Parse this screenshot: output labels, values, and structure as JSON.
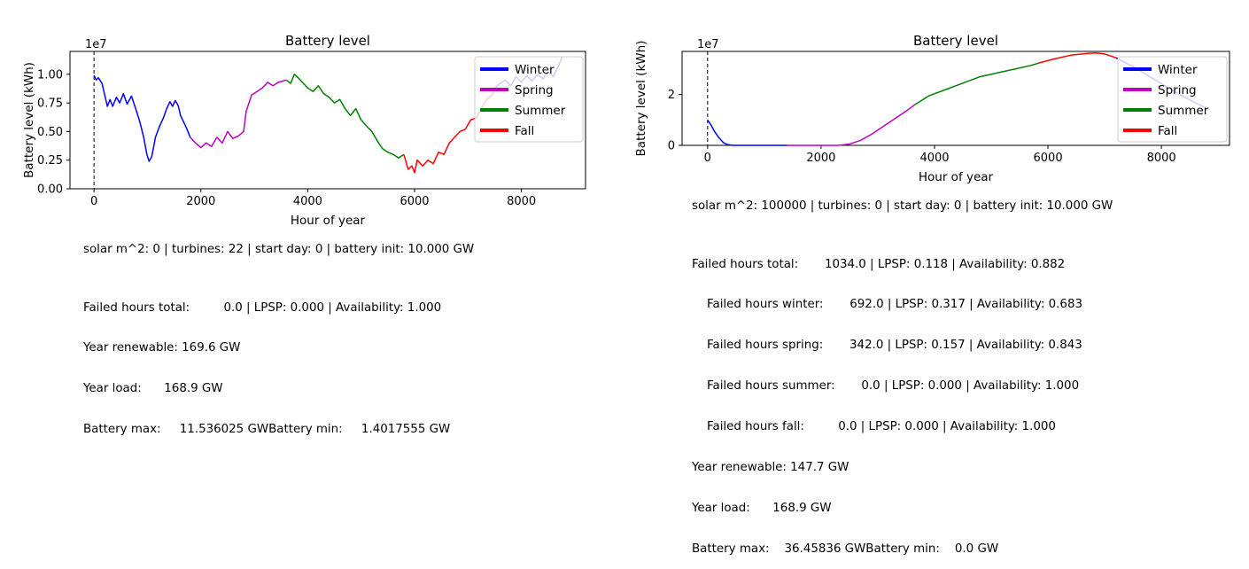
{
  "chart_data": [
    {
      "type": "line",
      "title": "Battery level",
      "xlabel": "Hour of year",
      "ylabel": "Battery level (kWh)",
      "offset_label": "1e7",
      "xlim": [
        -450,
        9200
      ],
      "ylim": [
        0,
        1.2
      ],
      "x_ticks": [
        0,
        2000,
        4000,
        6000,
        8000
      ],
      "y_ticks": [
        0.0,
        0.25,
        0.5,
        0.75,
        1.0
      ],
      "y_tick_labels": [
        "0.00",
        "0.25",
        "0.50",
        "0.75",
        "1.00"
      ],
      "x_tick_labels": [
        "0",
        "2000",
        "4000",
        "6000",
        "8000"
      ],
      "legend": [
        "Winter",
        "Spring",
        "Summer",
        "Fall"
      ],
      "legend_placement": "top-right",
      "vline_x": 0,
      "series": [
        {
          "name": "Winter",
          "color": "#0000ff",
          "x": [
            0,
            40,
            80,
            150,
            250,
            300,
            350,
            420,
            480,
            550,
            620,
            700,
            780,
            860,
            930,
            990,
            1030,
            1080,
            1150,
            1230,
            1300,
            1360,
            1420,
            1470,
            1520,
            1560,
            1580,
            1620,
            1680,
            1740,
            1800
          ],
          "y": [
            0.99,
            0.95,
            0.97,
            0.92,
            0.72,
            0.78,
            0.72,
            0.8,
            0.75,
            0.83,
            0.74,
            0.81,
            0.7,
            0.58,
            0.45,
            0.3,
            0.24,
            0.28,
            0.45,
            0.55,
            0.62,
            0.7,
            0.76,
            0.72,
            0.77,
            0.74,
            0.72,
            0.64,
            0.58,
            0.52,
            0.45
          ]
        },
        {
          "name": "Spring",
          "color": "#c000c0",
          "x": [
            1800,
            1900,
            2000,
            2100,
            2200,
            2300,
            2400,
            2500,
            2600,
            2700,
            2800,
            2850,
            2950,
            3050,
            3150,
            3250,
            3350,
            3450,
            3600
          ],
          "y": [
            0.45,
            0.4,
            0.36,
            0.4,
            0.37,
            0.45,
            0.4,
            0.5,
            0.44,
            0.46,
            0.5,
            0.68,
            0.82,
            0.85,
            0.88,
            0.93,
            0.9,
            0.93,
            0.95
          ]
        },
        {
          "name": "Summer",
          "color": "#008000",
          "x": [
            3600,
            3680,
            3750,
            3800,
            3900,
            4000,
            4100,
            4200,
            4300,
            4400,
            4500,
            4600,
            4700,
            4800,
            4900,
            5000,
            5100,
            5200,
            5300,
            5400,
            5500,
            5600,
            5700,
            5800
          ],
          "y": [
            0.95,
            0.92,
            1.0,
            0.98,
            0.93,
            0.88,
            0.85,
            0.9,
            0.83,
            0.8,
            0.75,
            0.78,
            0.7,
            0.64,
            0.7,
            0.6,
            0.55,
            0.5,
            0.42,
            0.35,
            0.32,
            0.3,
            0.27,
            0.3
          ]
        },
        {
          "name": "Fall",
          "color": "#ff0000",
          "x": [
            5800,
            5880,
            5950,
            6000,
            6050,
            6150,
            6250,
            6350,
            6450,
            6550,
            6650,
            6750,
            6850,
            6950,
            7050,
            7150,
            7250,
            7350,
            7450,
            7500
          ],
          "y": [
            0.3,
            0.17,
            0.2,
            0.14,
            0.25,
            0.2,
            0.25,
            0.22,
            0.32,
            0.3,
            0.4,
            0.45,
            0.5,
            0.52,
            0.6,
            0.62,
            0.7,
            0.78,
            0.82,
            0.88
          ]
        },
        {
          "name": "",
          "color": "#0000ff",
          "x": [
            7500,
            7600,
            7700,
            7800,
            7900,
            8000,
            8100,
            8200,
            8300,
            8400,
            8500,
            8600,
            8700,
            8760
          ],
          "y": [
            0.88,
            0.92,
            0.95,
            0.9,
            0.98,
            0.93,
            0.99,
            0.94,
            1.0,
            0.96,
            1.02,
            0.98,
            1.08,
            1.15
          ]
        }
      ]
    },
    {
      "type": "line",
      "title": "Battery level",
      "xlabel": "Hour of year",
      "ylabel": "Battery level (kWh)",
      "offset_label": "1e7",
      "xlim": [
        -450,
        9200
      ],
      "ylim": [
        0,
        3.7
      ],
      "x_ticks": [
        0,
        2000,
        4000,
        6000,
        8000
      ],
      "y_ticks": [
        0,
        2
      ],
      "y_tick_labels": [
        "0",
        "2"
      ],
      "x_tick_labels": [
        "0",
        "2000",
        "4000",
        "6000",
        "8000"
      ],
      "legend": [
        "Winter",
        "Spring",
        "Summer",
        "Fall"
      ],
      "legend_placement": "top-right",
      "vline_x": 0,
      "series": [
        {
          "name": "Winter",
          "color": "#0000ff",
          "x": [
            0,
            60,
            120,
            200,
            280,
            350,
            450,
            600,
            800,
            1000,
            1200,
            1400
          ],
          "y": [
            1.0,
            0.8,
            0.55,
            0.3,
            0.1,
            0.03,
            0.0,
            0.0,
            0.0,
            0.0,
            0.0,
            0.0
          ]
        },
        {
          "name": "Spring",
          "color": "#c000c0",
          "x": [
            1400,
            1700,
            2000,
            2300,
            2500,
            2700,
            2900,
            3100,
            3300,
            3500,
            3650
          ],
          "y": [
            0.0,
            0.0,
            0.0,
            0.0,
            0.05,
            0.2,
            0.45,
            0.75,
            1.05,
            1.35,
            1.6
          ]
        },
        {
          "name": "Summer",
          "color": "#008000",
          "x": [
            3650,
            3900,
            4200,
            4500,
            4800,
            5100,
            5400,
            5700,
            5850
          ],
          "y": [
            1.6,
            1.95,
            2.2,
            2.45,
            2.7,
            2.85,
            3.0,
            3.15,
            3.25
          ]
        },
        {
          "name": "Fall",
          "color": "#ff0000",
          "x": [
            5850,
            6100,
            6400,
            6700,
            6850,
            7000,
            7200
          ],
          "y": [
            3.25,
            3.4,
            3.55,
            3.62,
            3.64,
            3.6,
            3.45
          ]
        },
        {
          "name": "",
          "color": "#0000ff",
          "x": [
            7200,
            7500,
            7800,
            8100,
            8400,
            8760
          ],
          "y": [
            3.45,
            3.1,
            2.7,
            2.3,
            1.9,
            1.5
          ]
        }
      ]
    }
  ],
  "panels": [
    {
      "config_line": "solar m^2: 0 | turbines: 22 | start day: 0 | battery init: 10.000 GW",
      "stats_lines": [
        "Failed hours total:         0.0 | LPSP: 0.000 | Availability: 1.000",
        "Year renewable: 169.6 GW",
        "Year load:      168.9 GW",
        "Battery max:     11.536025 GWBattery min:     1.4017555 GW"
      ]
    },
    {
      "config_line": "solar m^2: 100000 | turbines: 0 | start day: 0 | battery init: 10.000 GW",
      "stats_lines": [
        "Failed hours total:       1034.0 | LPSP: 0.118 | Availability: 0.882",
        "    Failed hours winter:       692.0 | LPSP: 0.317 | Availability: 0.683",
        "    Failed hours spring:       342.0 | LPSP: 0.157 | Availability: 0.843",
        "    Failed hours summer:       0.0 | LPSP: 0.000 | Availability: 1.000",
        "    Failed hours fall:         0.0 | LPSP: 0.000 | Availability: 1.000",
        "Year renewable: 147.7 GW",
        "Year load:      168.9 GW",
        "Battery max:    36.45836 GWBattery min:    0.0 GW"
      ]
    }
  ]
}
